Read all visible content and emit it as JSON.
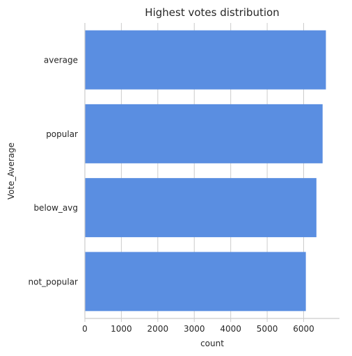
{
  "chart_data": {
    "type": "bar",
    "orientation": "horizontal",
    "title": "Highest votes distribution",
    "xlabel": "count",
    "ylabel": "Vote_Average",
    "categories": [
      "average",
      "popular",
      "below_avg",
      "not_popular"
    ],
    "values": [
      6610,
      6520,
      6350,
      6060
    ],
    "xlim": [
      0,
      7000
    ],
    "xticks": [
      0,
      1000,
      2000,
      3000,
      4000,
      5000,
      6000
    ],
    "grid": "vertical",
    "bar_color": "#5a8ee1"
  }
}
